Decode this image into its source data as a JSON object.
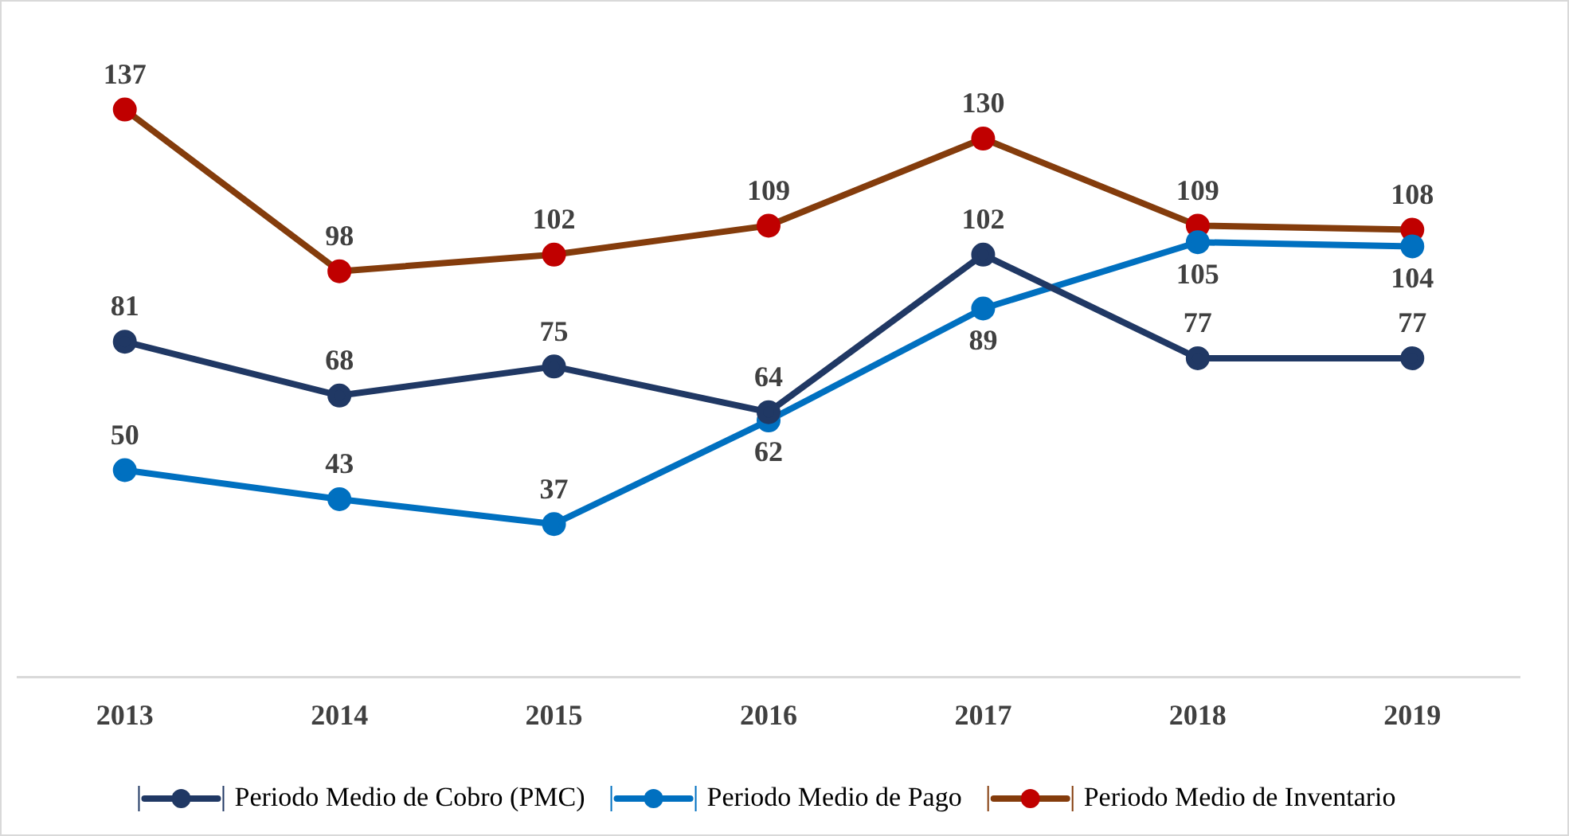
{
  "chart_data": {
    "type": "line",
    "categories": [
      "2013",
      "2014",
      "2015",
      "2016",
      "2017",
      "2018",
      "2019"
    ],
    "series": [
      {
        "name": "Periodo Medio de Cobro (PMC)",
        "color": "#203864",
        "values": [
          81,
          68,
          75,
          64,
          102,
          77,
          77
        ]
      },
      {
        "name": "Periodo Medio de Pago",
        "color": "#0070c0",
        "values": [
          50,
          43,
          37,
          62,
          89,
          105,
          104
        ]
      },
      {
        "name": "Periodo Medio de Inventario",
        "color": "#843c0c",
        "colors": [
          "#c00000",
          "#c00000",
          "#c00000",
          "#c00000",
          "#c00000",
          "#c00000",
          "#c00000"
        ],
        "values": [
          137,
          98,
          102,
          109,
          130,
          109,
          108
        ]
      }
    ],
    "tick_labels": "x",
    "data_labels": true,
    "grid": false,
    "legend": "bottom",
    "marker": "circle",
    "line_style": "solid"
  }
}
